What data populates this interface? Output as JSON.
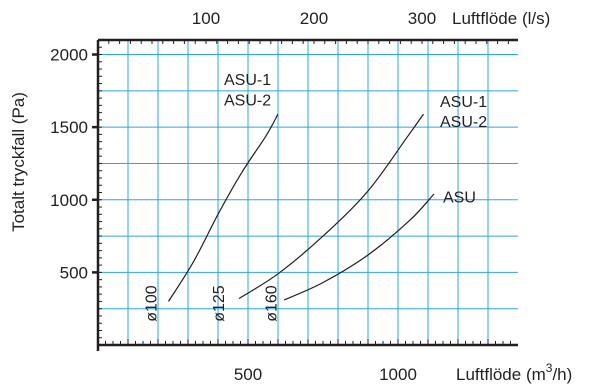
{
  "chart_data": {
    "type": "line",
    "x_bottom": {
      "label": "Luftflöde (m³/h)",
      "label_text": "Luftflöde (m",
      "label_sup": "3",
      "label_end": "/h)",
      "ticks": [
        500,
        1000
      ],
      "range": [
        0,
        1400
      ]
    },
    "x_top": {
      "label": "Luftflöde (l/s)",
      "ticks": [
        100,
        200,
        300
      ],
      "range": [
        0,
        388.9
      ]
    },
    "y": {
      "label": "Totalt tryckfall (Pa)",
      "ticks": [
        500,
        1000,
        1500,
        2000
      ],
      "range": [
        0,
        2100
      ]
    },
    "grid": true,
    "series": [
      {
        "name": "ASU-1 / ASU-2",
        "diameter": "ø100",
        "x": [
          235,
          320,
          400,
          480,
          560,
          600
        ],
        "y": [
          300,
          580,
          900,
          1190,
          1440,
          1590
        ]
      },
      {
        "name": "ASU-1 / ASU-2",
        "diameter": "ø125",
        "x": [
          470,
          600,
          750,
          900,
          1030,
          1085
        ],
        "y": [
          320,
          490,
          750,
          1060,
          1430,
          1590
        ]
      },
      {
        "name": "ASU",
        "diameter": "ø160",
        "x": [
          620,
          750,
          900,
          1040,
          1120
        ],
        "y": [
          310,
          430,
          620,
          860,
          1040
        ]
      }
    ],
    "annotations": [
      {
        "text": "ASU-1",
        "x": 420,
        "y": 1790
      },
      {
        "text": "ASU-2",
        "x": 420,
        "y": 1650
      },
      {
        "text": "ASU-1",
        "x": 1140,
        "y": 1640
      },
      {
        "text": "ASU-2",
        "x": 1140,
        "y": 1500
      },
      {
        "text": "ASU",
        "x": 1150,
        "y": 980
      },
      {
        "text": "ø100",
        "x": 195,
        "y": 160,
        "rotate": true
      },
      {
        "text": "ø125",
        "x": 420,
        "y": 160,
        "rotate": true
      },
      {
        "text": "ø160",
        "x": 595,
        "y": 160,
        "rotate": true
      }
    ]
  }
}
